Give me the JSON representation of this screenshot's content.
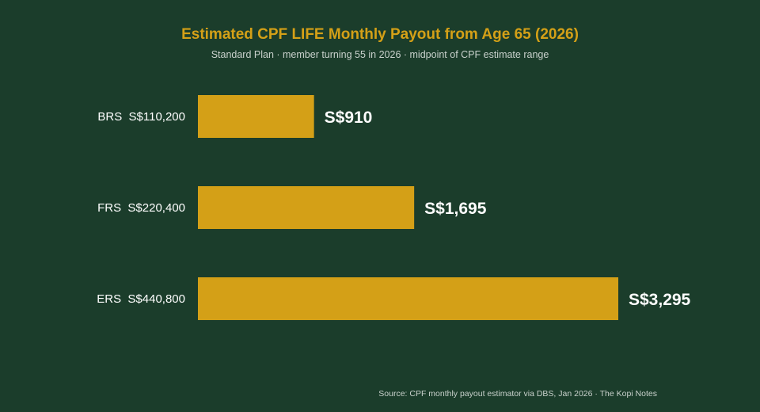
{
  "colors": {
    "background": "#1b3d2b",
    "bar": "#d4a017",
    "title": "#d4a017",
    "subtitle": "#c9d1cc",
    "label": "#ffffff",
    "source": "#c9d1cc"
  },
  "chart_data": {
    "type": "bar",
    "orientation": "horizontal",
    "title": "Estimated CPF LIFE Monthly Payout from Age 65 (2026)",
    "subtitle": "Standard Plan · member turning 55 in 2026 · midpoint of CPF estimate range",
    "categories": [
      "BRS  S$110,200",
      "FRS  S$220,400",
      "ERS  S$440,800"
    ],
    "values": [
      910,
      1695,
      3295
    ],
    "data_labels": [
      "S$910",
      "S$1,695",
      "S$3,295"
    ],
    "xlim": [
      0,
      3295
    ],
    "grid": false,
    "legend": "none",
    "source": "Source: CPF monthly payout estimator via DBS, Jan 2026 · The Kopi Notes"
  }
}
